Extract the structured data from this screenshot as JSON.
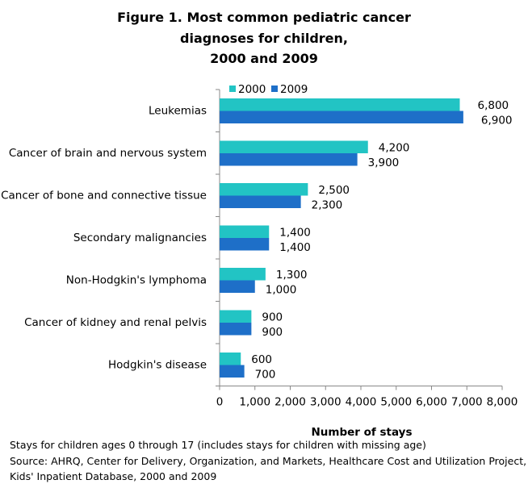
{
  "chart_data": {
    "type": "bar",
    "orientation": "horizontal",
    "title_lines": [
      "Figure 1. Most common pediatric cancer",
      "diagnoses for children,",
      "2000 and 2009"
    ],
    "categories": [
      "Leukemias",
      "Cancer of brain and nervous system",
      "Cancer of bone and connective tissue",
      "Secondary malignancies",
      "Non-Hodgkin's lymphoma",
      "Cancer of kidney and renal pelvis",
      "Hodgkin's disease"
    ],
    "series": [
      {
        "name": "2000",
        "color": "#22C4C4",
        "values": [
          6800,
          4200,
          2500,
          1400,
          1300,
          900,
          600
        ],
        "labels": [
          "6,800",
          "4,200",
          "2,500",
          "1,400",
          "1,300",
          "900",
          "600"
        ]
      },
      {
        "name": "2009",
        "color": "#1E6FC8",
        "values": [
          6900,
          3900,
          2300,
          1400,
          1000,
          900,
          700
        ],
        "labels": [
          "6,900",
          "3,900",
          "2,300",
          "1,400",
          "1,000",
          "900",
          "700"
        ]
      }
    ],
    "xlabel": "Number of stays",
    "xlim": [
      0,
      8000
    ],
    "xticks": [
      0,
      1000,
      2000,
      3000,
      4000,
      5000,
      6000,
      7000,
      8000
    ],
    "xtick_labels": [
      "0",
      "1,000",
      "2,000",
      "3,000",
      "4,000",
      "5,000",
      "6,000",
      "7,000",
      "8,000"
    ],
    "grid": false,
    "legend_position": "top"
  },
  "notes": [
    "Stays for children ages  0 through 17 (includes stays for children with missing age)",
    "Source: AHRQ, Center for Delivery, Organization, and Markets, Healthcare Cost and Utilization Project,",
    "Kids' Inpatient Database, 2000 and 2009"
  ]
}
